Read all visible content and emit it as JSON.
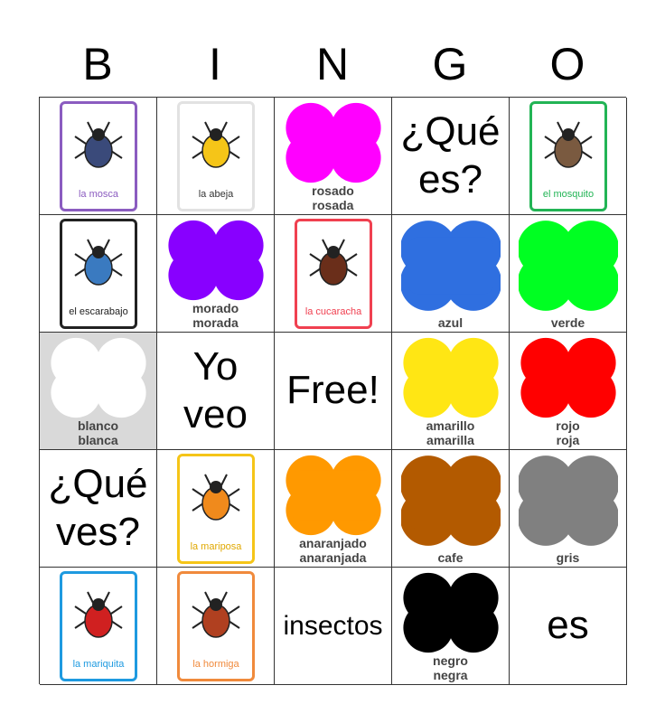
{
  "header": [
    "B",
    "I",
    "N",
    "G",
    "O"
  ],
  "cells": [
    {
      "type": "card",
      "label": "la mosca",
      "border": "#8b5cc0",
      "label_color": "#8b5cc0",
      "bug": "#3a4a7a"
    },
    {
      "type": "card",
      "label": "la abeja",
      "border": "#e2e2e2",
      "label_color": "#333333",
      "bug": "#f5c518"
    },
    {
      "type": "color",
      "label": "rosado\nrosada",
      "color": "#ff00ff"
    },
    {
      "type": "text",
      "text": "¿Qué\nes?"
    },
    {
      "type": "card",
      "label": "el mosquito",
      "border": "#22b455",
      "label_color": "#22b455",
      "bug": "#7a5a40"
    },
    {
      "type": "card",
      "label": "el escarabajo",
      "border": "#222222",
      "label_color": "#222222",
      "bug": "#3a7ac0"
    },
    {
      "type": "color",
      "label": "morado\nmorada",
      "color": "#8800ff"
    },
    {
      "type": "card",
      "label": "la cucaracha",
      "border": "#f04050",
      "label_color": "#f04050",
      "bug": "#6a2e1a"
    },
    {
      "type": "color",
      "label": "azul",
      "color": "#2f6fe0"
    },
    {
      "type": "color",
      "label": "verde",
      "color": "#00ff22"
    },
    {
      "type": "color",
      "label": "blanco\nblanca",
      "color": "#ffffff",
      "bg": "#d9d9d9"
    },
    {
      "type": "text",
      "text": "Yo\nveo"
    },
    {
      "type": "text",
      "text": "Free!"
    },
    {
      "type": "color",
      "label": "amarillo\namarilla",
      "color": "#ffe614"
    },
    {
      "type": "color",
      "label": "rojo\nroja",
      "color": "#ff0000"
    },
    {
      "type": "text",
      "text": "¿Qué\nves?"
    },
    {
      "type": "card",
      "label": "la mariposa",
      "border": "#f5c518",
      "label_color": "#e0a800",
      "bug": "#f08a1c"
    },
    {
      "type": "color",
      "label": "anaranjado\nanaranjada",
      "color": "#ff9900"
    },
    {
      "type": "color",
      "label": "cafe",
      "color": "#b35a00"
    },
    {
      "type": "color",
      "label": "gris",
      "color": "#808080"
    },
    {
      "type": "card",
      "label": "la mariquita",
      "border": "#1e9ae0",
      "label_color": "#1e9ae0",
      "bug": "#d02020"
    },
    {
      "type": "card",
      "label": "la hormiga",
      "border": "#f08a3c",
      "label_color": "#f08a3c",
      "bug": "#b04020"
    },
    {
      "type": "text",
      "text": "insectos",
      "small": true
    },
    {
      "type": "color",
      "label": "negro\nnegra",
      "color": "#000000"
    },
    {
      "type": "text",
      "text": "es"
    }
  ]
}
